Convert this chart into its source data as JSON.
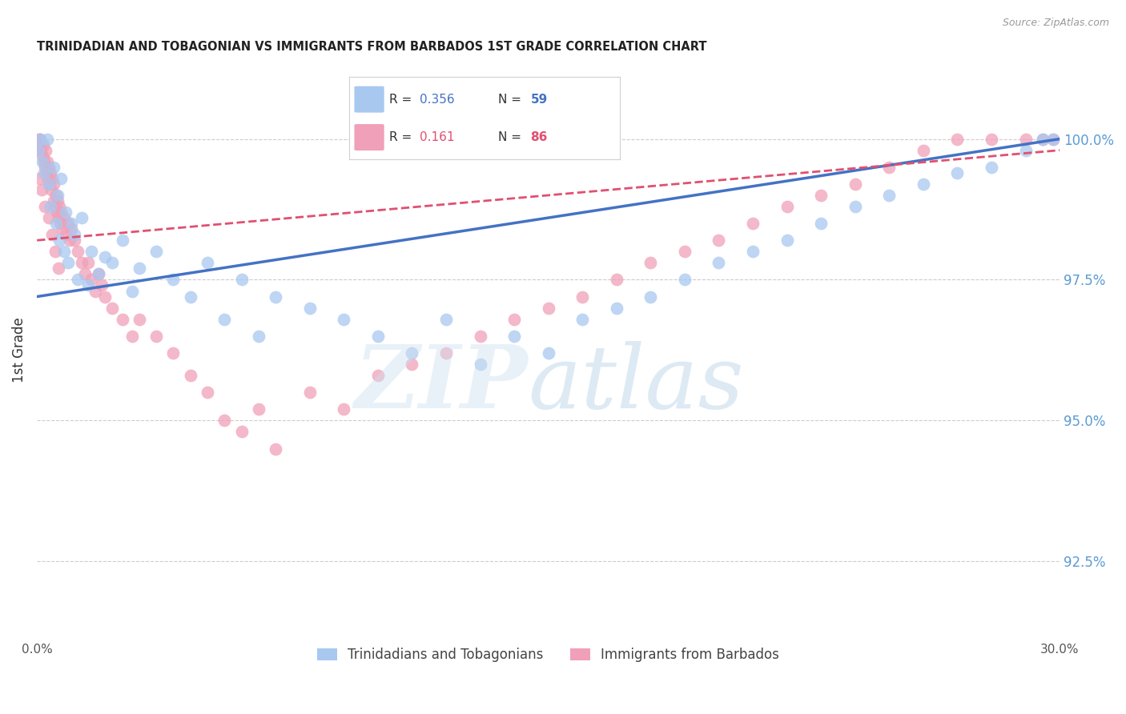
{
  "title": "TRINIDADIAN AND TOBAGONIAN VS IMMIGRANTS FROM BARBADOS 1ST GRADE CORRELATION CHART",
  "source": "Source: ZipAtlas.com",
  "ylabel": "1st Grade",
  "ytick_labels": [
    "92.5%",
    "95.0%",
    "97.5%",
    "100.0%"
  ],
  "ytick_values": [
    92.5,
    95.0,
    97.5,
    100.0
  ],
  "xlim": [
    0.0,
    30.0
  ],
  "ylim": [
    91.2,
    101.3
  ],
  "blue_R": 0.356,
  "blue_N": 59,
  "pink_R": 0.161,
  "pink_N": 86,
  "blue_color": "#a8c8f0",
  "pink_color": "#f0a0b8",
  "blue_line_color": "#4472c4",
  "pink_line_color": "#e05070",
  "legend_label_blue": "Trinidadians and Tobagonians",
  "legend_label_pink": "Immigrants from Barbados",
  "blue_x": [
    0.05,
    0.1,
    0.15,
    0.2,
    0.3,
    0.35,
    0.4,
    0.5,
    0.55,
    0.6,
    0.65,
    0.7,
    0.8,
    0.85,
    0.9,
    1.0,
    1.1,
    1.2,
    1.3,
    1.5,
    1.6,
    1.8,
    2.0,
    2.2,
    2.5,
    2.8,
    3.0,
    3.5,
    4.0,
    4.5,
    5.0,
    5.5,
    6.0,
    6.5,
    7.0,
    8.0,
    9.0,
    10.0,
    11.0,
    12.0,
    13.0,
    14.0,
    15.0,
    16.0,
    17.0,
    18.0,
    19.0,
    20.0,
    21.0,
    22.0,
    23.0,
    24.0,
    25.0,
    26.0,
    27.0,
    28.0,
    29.0,
    29.5,
    29.8
  ],
  "blue_y": [
    99.8,
    100.0,
    99.6,
    99.4,
    100.0,
    99.2,
    98.8,
    99.5,
    98.5,
    99.0,
    98.2,
    99.3,
    98.0,
    98.7,
    97.8,
    98.5,
    98.3,
    97.5,
    98.6,
    97.4,
    98.0,
    97.6,
    97.9,
    97.8,
    98.2,
    97.3,
    97.7,
    98.0,
    97.5,
    97.2,
    97.8,
    96.8,
    97.5,
    96.5,
    97.2,
    97.0,
    96.8,
    96.5,
    96.2,
    96.8,
    96.0,
    96.5,
    96.2,
    96.8,
    97.0,
    97.2,
    97.5,
    97.8,
    98.0,
    98.2,
    98.5,
    98.8,
    99.0,
    99.2,
    99.4,
    99.5,
    99.8,
    100.0,
    100.0
  ],
  "pink_x": [
    0.05,
    0.08,
    0.1,
    0.12,
    0.15,
    0.18,
    0.2,
    0.22,
    0.25,
    0.28,
    0.3,
    0.32,
    0.35,
    0.38,
    0.4,
    0.42,
    0.45,
    0.48,
    0.5,
    0.52,
    0.55,
    0.58,
    0.6,
    0.62,
    0.65,
    0.68,
    0.7,
    0.75,
    0.8,
    0.85,
    0.9,
    0.95,
    1.0,
    1.1,
    1.2,
    1.3,
    1.4,
    1.5,
    1.6,
    1.7,
    1.8,
    1.9,
    2.0,
    2.2,
    2.5,
    2.8,
    3.0,
    3.5,
    4.0,
    4.5,
    5.0,
    5.5,
    6.0,
    6.5,
    7.0,
    8.0,
    9.0,
    10.0,
    11.0,
    12.0,
    13.0,
    14.0,
    15.0,
    16.0,
    17.0,
    18.0,
    19.0,
    20.0,
    21.0,
    22.0,
    23.0,
    24.0,
    25.0,
    26.0,
    27.0,
    28.0,
    29.0,
    29.5,
    29.8,
    0.06,
    0.14,
    0.24,
    0.34,
    0.44,
    0.54,
    0.64
  ],
  "pink_y": [
    100.0,
    99.9,
    100.0,
    99.8,
    99.7,
    99.9,
    99.6,
    99.5,
    99.8,
    99.4,
    99.6,
    99.3,
    99.5,
    99.2,
    99.4,
    99.1,
    99.3,
    98.9,
    99.2,
    98.8,
    99.0,
    98.7,
    98.9,
    98.6,
    98.8,
    98.5,
    98.7,
    98.4,
    98.6,
    98.3,
    98.5,
    98.2,
    98.4,
    98.2,
    98.0,
    97.8,
    97.6,
    97.8,
    97.5,
    97.3,
    97.6,
    97.4,
    97.2,
    97.0,
    96.8,
    96.5,
    96.8,
    96.5,
    96.2,
    95.8,
    95.5,
    95.0,
    94.8,
    95.2,
    94.5,
    95.5,
    95.2,
    95.8,
    96.0,
    96.2,
    96.5,
    96.8,
    97.0,
    97.2,
    97.5,
    97.8,
    98.0,
    98.2,
    98.5,
    98.8,
    99.0,
    99.2,
    99.5,
    99.8,
    100.0,
    100.0,
    100.0,
    100.0,
    100.0,
    99.3,
    99.1,
    98.8,
    98.6,
    98.3,
    98.0,
    97.7
  ],
  "blue_trend_x": [
    0.0,
    30.0
  ],
  "blue_trend_y": [
    97.2,
    100.0
  ],
  "pink_trend_x": [
    0.0,
    30.0
  ],
  "pink_trend_y": [
    98.2,
    99.8
  ]
}
